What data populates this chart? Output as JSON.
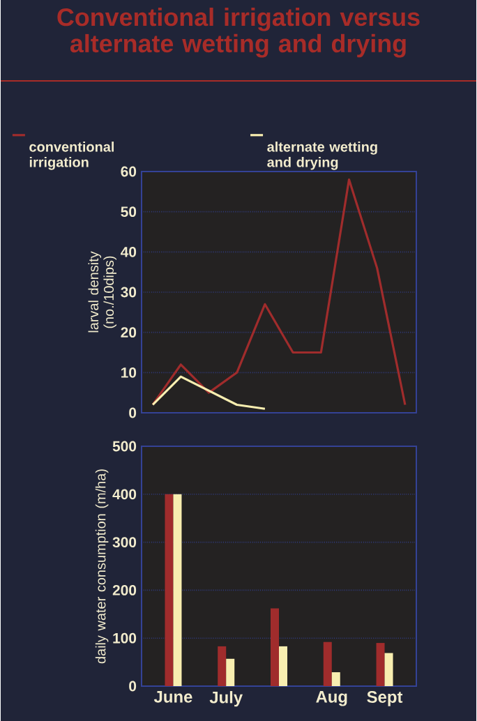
{
  "chart_data": [
    {
      "type": "line",
      "title": "Conventional irrigation versus alternate wetting and drying",
      "ylabel": "larval density (no./10dips)",
      "categories": [
        null,
        null,
        null,
        null,
        null,
        null,
        null,
        null,
        null,
        null
      ],
      "ylim": [
        0,
        60
      ],
      "yticks": [
        0,
        10,
        20,
        30,
        40,
        50,
        60
      ],
      "grid": "y",
      "legend": "top",
      "tick_labels": "y",
      "series": [
        {
          "name": "conventional irrigation",
          "color": "#a02c2c",
          "values": [
            2,
            12,
            5,
            10,
            27,
            15,
            15,
            58,
            36,
            2
          ]
        },
        {
          "name": "alternate wetting and drying",
          "color": "#f8eeb0",
          "values": [
            2,
            9,
            null,
            2,
            1,
            null,
            null,
            null,
            null,
            null
          ]
        }
      ]
    },
    {
      "type": "bar",
      "ylabel": "daily water consumption (m/ha)",
      "categories": [
        "June",
        "July",
        null,
        "Aug",
        "Sept"
      ],
      "ylim": [
        0,
        500
      ],
      "yticks": [
        0,
        100,
        200,
        300,
        400,
        500
      ],
      "grid": "y",
      "series": [
        {
          "color": "#a02c2c",
          "values": [
            400,
            83,
            162,
            92,
            90
          ]
        },
        {
          "color": "#f8eeb0",
          "values": [
            400,
            57,
            83,
            29,
            69
          ]
        }
      ]
    }
  ]
}
